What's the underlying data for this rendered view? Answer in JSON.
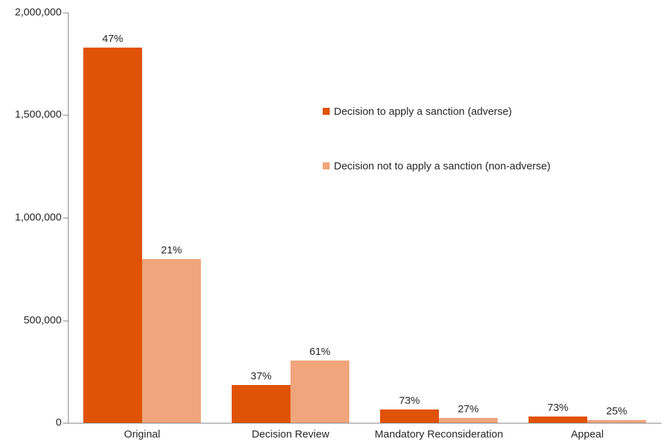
{
  "chart_data": {
    "type": "bar",
    "title": "",
    "categories": [
      "Original",
      "Decision Review",
      "Mandatory Reconsideration",
      "Appeal"
    ],
    "series": [
      {
        "name": "Decision to apply a sanction (adverse)",
        "color": "#E05206",
        "values": [
          1830000,
          185000,
          65000,
          32000
        ],
        "labels": [
          "47%",
          "37%",
          "73%",
          "73%"
        ]
      },
      {
        "name": "Decision not to apply a sanction (non-adverse)",
        "color": "#F0A57C",
        "values": [
          800000,
          305000,
          24000,
          13000
        ],
        "labels": [
          "21%",
          "61%",
          "27%",
          "25%"
        ]
      }
    ],
    "ylim": [
      0,
      2000000
    ],
    "ytick_interval": 500000,
    "ytick_labels": [
      "0",
      "500,000",
      "1,000,000",
      "1,500,000",
      "2,000,000"
    ],
    "grid": false,
    "legend_position": "upper-center-right"
  },
  "colors": {
    "axis": "#898989",
    "text": "#262626",
    "background": "#ffffff"
  }
}
